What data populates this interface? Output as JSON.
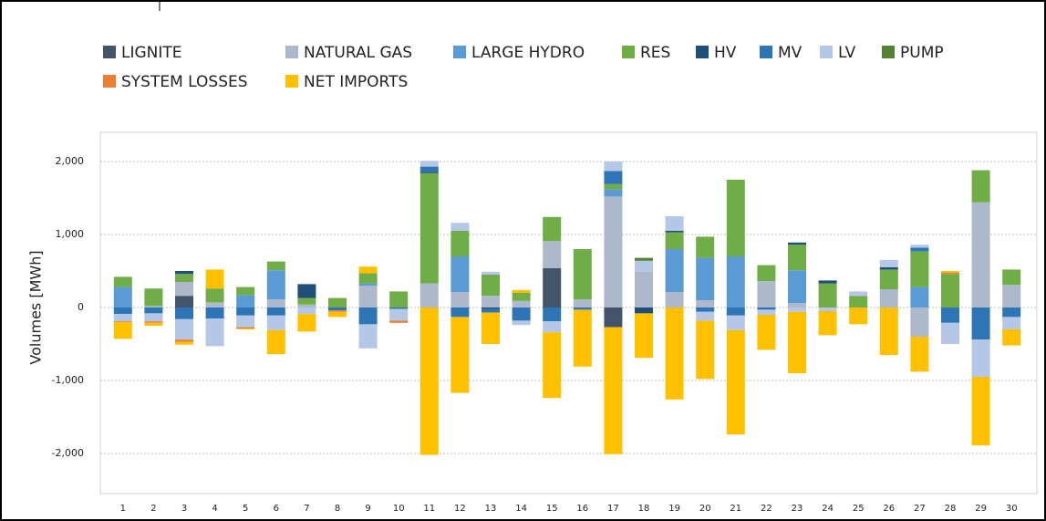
{
  "chart_data": {
    "type": "bar",
    "stacked": true,
    "y_label": "Volumes [MWh]",
    "categories": [
      "1",
      "2",
      "3",
      "4",
      "5",
      "6",
      "7",
      "8",
      "9",
      "10",
      "11",
      "12",
      "13",
      "14",
      "15",
      "16",
      "17",
      "18",
      "19",
      "20",
      "21",
      "22",
      "23",
      "24",
      "25",
      "26",
      "27",
      "28",
      "29",
      "30"
    ],
    "ylim": [
      -2550,
      2400
    ],
    "yticks": [
      {
        "value": -2000,
        "label": "-2,000"
      },
      {
        "value": -1000,
        "label": "-1,000"
      },
      0,
      {
        "value": 1000,
        "label": "1,000"
      },
      {
        "value": 2000,
        "label": "2,000"
      }
    ],
    "grid": true,
    "series": [
      {
        "name": "LIGNITE",
        "color": "#44546a",
        "values": [
          0,
          0,
          160,
          0,
          0,
          0,
          0,
          0,
          0,
          0,
          0,
          0,
          0,
          0,
          540,
          0,
          -270,
          0,
          0,
          0,
          0,
          0,
          0,
          0,
          0,
          0,
          0,
          0,
          0,
          0
        ]
      },
      {
        "name": "NATURAL GAS",
        "color": "#adb9ca",
        "values": [
          0,
          20,
          190,
          70,
          0,
          110,
          40,
          0,
          300,
          0,
          330,
          210,
          160,
          90,
          370,
          110,
          1520,
          490,
          210,
          100,
          0,
          360,
          60,
          0,
          0,
          250,
          -400,
          0,
          1440,
          310
        ]
      },
      {
        "name": "LARGE HYDRO",
        "color": "#5b9bd5",
        "values": [
          280,
          0,
          0,
          0,
          170,
          400,
          0,
          0,
          30,
          0,
          0,
          490,
          0,
          0,
          0,
          0,
          100,
          0,
          590,
          580,
          700,
          0,
          450,
          0,
          0,
          0,
          280,
          0,
          0,
          0
        ]
      },
      {
        "name": "RES",
        "color": "#70ad47",
        "values": [
          140,
          240,
          110,
          190,
          110,
          120,
          90,
          130,
          140,
          220,
          1510,
          350,
          290,
          110,
          330,
          690,
          70,
          0,
          230,
          290,
          1050,
          220,
          350,
          330,
          160,
          270,
          490,
          460,
          440,
          210
        ]
      },
      {
        "name": "HV",
        "color": "#1f4e79",
        "values": [
          0,
          0,
          40,
          0,
          0,
          0,
          190,
          0,
          0,
          0,
          20,
          0,
          -20,
          0,
          0,
          0,
          0,
          -80,
          20,
          0,
          0,
          0,
          30,
          40,
          0,
          30,
          0,
          0,
          0,
          0
        ]
      },
      {
        "name": "MV",
        "color": "#2e75b6",
        "values": [
          -90,
          -80,
          -160,
          -150,
          -110,
          -110,
          0,
          -40,
          -230,
          -20,
          70,
          -130,
          -50,
          -180,
          -190,
          -30,
          180,
          0,
          0,
          -60,
          -110,
          -30,
          0,
          0,
          0,
          0,
          50,
          -210,
          -440,
          -130
        ]
      },
      {
        "name": "LV",
        "color": "#b4c7e7",
        "values": [
          -100,
          -110,
          -280,
          -380,
          -160,
          -200,
          -90,
          0,
          -330,
          -160,
          80,
          110,
          40,
          -60,
          -150,
          0,
          130,
          150,
          200,
          -120,
          -200,
          -70,
          -60,
          -50,
          60,
          100,
          40,
          -290,
          -510,
          -170
        ]
      },
      {
        "name": "PUMP",
        "color": "#548235",
        "values": [
          0,
          0,
          0,
          0,
          0,
          0,
          0,
          0,
          0,
          0,
          0,
          0,
          0,
          0,
          0,
          0,
          0,
          40,
          0,
          0,
          0,
          0,
          0,
          0,
          0,
          0,
          0,
          0,
          0,
          0
        ]
      },
      {
        "name": "SYSTEM LOSSES",
        "color": "#ed7d31",
        "values": [
          -10,
          -20,
          -30,
          0,
          -20,
          0,
          0,
          -20,
          0,
          -30,
          0,
          0,
          0,
          0,
          0,
          0,
          0,
          0,
          0,
          0,
          0,
          0,
          0,
          0,
          0,
          0,
          0,
          20,
          0,
          0
        ]
      },
      {
        "name": "NET IMPORTS",
        "color": "#ffc000",
        "values": [
          -230,
          -40,
          -40,
          260,
          -10,
          -330,
          -240,
          -70,
          90,
          0,
          -2020,
          -1040,
          -430,
          40,
          -900,
          -780,
          -1740,
          -610,
          -1260,
          -800,
          -1430,
          -480,
          -840,
          -330,
          -230,
          -650,
          -480,
          20,
          -940,
          -220
        ]
      }
    ]
  }
}
